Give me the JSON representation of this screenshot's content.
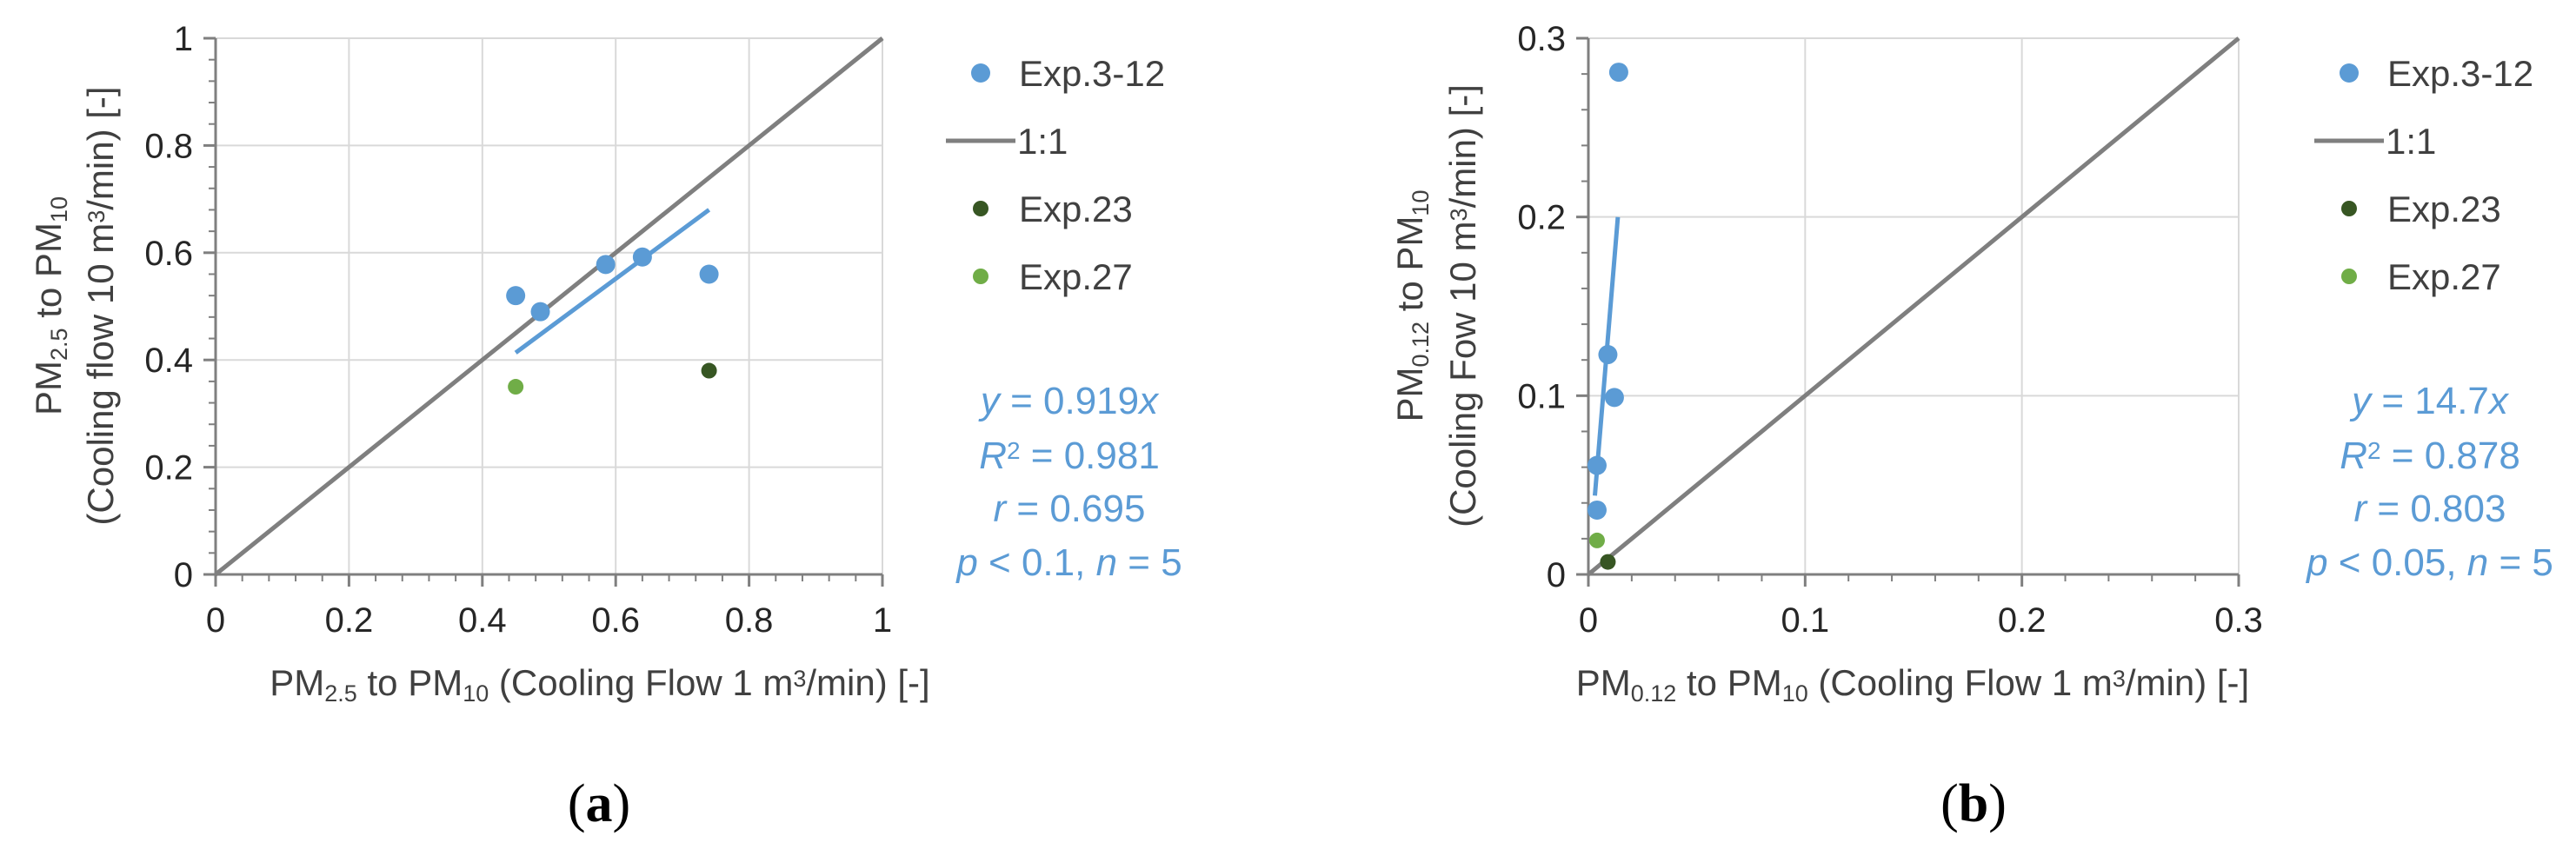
{
  "chart_data": [
    {
      "type": "scatter",
      "panel_label": "(a)",
      "xlabel": "PM2.5 to PM10 (Cooling Flow 1 m3/min) [-]",
      "xlabel_parts": [
        {
          "t": "PM"
        },
        {
          "t": "2.5",
          "s": "sub"
        },
        {
          "t": " to PM"
        },
        {
          "t": "10",
          "s": "sub"
        },
        {
          "t": " (Cooling Flow 1 m"
        },
        {
          "t": "3",
          "s": "sup"
        },
        {
          "t": "/min) [-]"
        }
      ],
      "ylabel_line1": "PM2.5 to PM10",
      "ylabel_line1_parts": [
        {
          "t": "PM"
        },
        {
          "t": "2.5",
          "s": "sub"
        },
        {
          "t": " to PM"
        },
        {
          "t": "10",
          "s": "sub"
        }
      ],
      "ylabel_line2": "(Cooling flow 10 m3/min) [-]",
      "ylabel_line2_parts": [
        {
          "t": "(Cooling flow 10 m"
        },
        {
          "t": "3",
          "s": "sup"
        },
        {
          "t": "/min) [-]"
        }
      ],
      "xlim": [
        0,
        1
      ],
      "ylim": [
        0,
        1
      ],
      "xticks": [
        0,
        0.2,
        0.4,
        0.6,
        0.8,
        1
      ],
      "yticks": [
        0,
        0.2,
        0.4,
        0.6,
        0.8,
        1
      ],
      "xtick_labels": [
        "0",
        "0.2",
        "0.4",
        "0.6",
        "0.8",
        "1"
      ],
      "ytick_labels": [
        "0",
        "0.2",
        "0.4",
        "0.6",
        "0.8",
        "1"
      ],
      "grid": true,
      "legend_position": "right",
      "series": [
        {
          "name": "Exp.3-12",
          "kind": "points",
          "color": "#5b9bd5",
          "points": [
            [
              0.45,
              0.52
            ],
            [
              0.487,
              0.49
            ],
            [
              0.585,
              0.578
            ],
            [
              0.64,
              0.592
            ],
            [
              0.74,
              0.56
            ]
          ]
        },
        {
          "name": "1:1",
          "kind": "line",
          "color": "#7f7f7f",
          "points": [
            [
              0,
              0
            ],
            [
              1,
              1
            ]
          ]
        },
        {
          "name": "Exp.23",
          "kind": "points",
          "color": "#375623",
          "points": [
            [
              0.74,
              0.38
            ]
          ]
        },
        {
          "name": "Exp.27",
          "kind": "points",
          "color": "#70ad47",
          "points": [
            [
              0.45,
              0.35
            ]
          ]
        }
      ],
      "fit": {
        "color": "#5b9bd5",
        "slope": 0.919,
        "x_range": [
          0.45,
          0.74
        ]
      },
      "stats": {
        "line1": [
          {
            "t": "y",
            "s": "i"
          },
          {
            "t": " = 0.919"
          },
          {
            "t": "x",
            "s": "i"
          }
        ],
        "line2": [
          {
            "t": "R",
            "s": "i"
          },
          {
            "t": "2",
            "s": "sup"
          },
          {
            "t": " = 0.981"
          }
        ],
        "line3": [
          {
            "t": "r",
            "s": "i"
          },
          {
            "t": " = 0.695"
          }
        ],
        "line4": [
          {
            "t": "p",
            "s": "i"
          },
          {
            "t": " < 0.1, "
          },
          {
            "t": "n",
            "s": "i"
          },
          {
            "t": " = 5"
          }
        ]
      }
    },
    {
      "type": "scatter",
      "panel_label": "(b)",
      "xlabel": "PM0.12 to PM10 (Cooling Flow 1 m3/min) [-]",
      "xlabel_parts": [
        {
          "t": "PM"
        },
        {
          "t": "0.12",
          "s": "sub"
        },
        {
          "t": " to PM"
        },
        {
          "t": "10",
          "s": "sub"
        },
        {
          "t": " (Cooling Flow 1 m"
        },
        {
          "t": "3",
          "s": "sup"
        },
        {
          "t": "/min) [-]"
        }
      ],
      "ylabel_line1": "PM0.12 to PM10",
      "ylabel_line1_parts": [
        {
          "t": "PM"
        },
        {
          "t": "0.12",
          "s": "sub"
        },
        {
          "t": " to PM"
        },
        {
          "t": "10",
          "s": "sub"
        }
      ],
      "ylabel_line2": "(Cooling Fow 10 m3/min) [-]",
      "ylabel_line2_parts": [
        {
          "t": "(Cooling Fow 10 m"
        },
        {
          "t": "3",
          "s": "sup"
        },
        {
          "t": "/min) [-]"
        }
      ],
      "xlim": [
        0,
        0.3
      ],
      "ylim": [
        0,
        0.3
      ],
      "xticks": [
        0,
        0.1,
        0.2,
        0.3
      ],
      "yticks": [
        0,
        0.1,
        0.2,
        0.3
      ],
      "xtick_labels": [
        "0",
        "0.1",
        "0.2",
        "0.3"
      ],
      "ytick_labels": [
        "0",
        "0.1",
        "0.2",
        "0.3"
      ],
      "grid": true,
      "legend_position": "right",
      "series": [
        {
          "name": "Exp.3-12",
          "kind": "points",
          "color": "#5b9bd5",
          "points": [
            [
              0.014,
              0.281
            ],
            [
              0.009,
              0.123
            ],
            [
              0.012,
              0.099
            ],
            [
              0.004,
              0.061
            ],
            [
              0.004,
              0.036
            ]
          ]
        },
        {
          "name": "1:1",
          "kind": "line",
          "color": "#7f7f7f",
          "points": [
            [
              0,
              0
            ],
            [
              0.3,
              0.3
            ]
          ]
        },
        {
          "name": "Exp.23",
          "kind": "points",
          "color": "#375623",
          "points": [
            [
              0.009,
              0.007
            ]
          ]
        },
        {
          "name": "Exp.27",
          "kind": "points",
          "color": "#70ad47",
          "points": [
            [
              0.004,
              0.019
            ]
          ]
        }
      ],
      "fit": {
        "color": "#5b9bd5",
        "slope": 14.7,
        "x_range": [
          0.003,
          0.0136
        ]
      },
      "stats": {
        "line1": [
          {
            "t": "y",
            "s": "i"
          },
          {
            "t": " = 14.7"
          },
          {
            "t": "x",
            "s": "i"
          }
        ],
        "line2": [
          {
            "t": "R",
            "s": "i"
          },
          {
            "t": "2",
            "s": "sup"
          },
          {
            "t": " = 0.878"
          }
        ],
        "line3": [
          {
            "t": "r",
            "s": "i"
          },
          {
            "t": " = 0.803"
          }
        ],
        "line4": [
          {
            "t": "p",
            "s": "i"
          },
          {
            "t": " < 0.05, "
          },
          {
            "t": "n",
            "s": "i"
          },
          {
            "t": " = 5"
          }
        ]
      }
    }
  ]
}
